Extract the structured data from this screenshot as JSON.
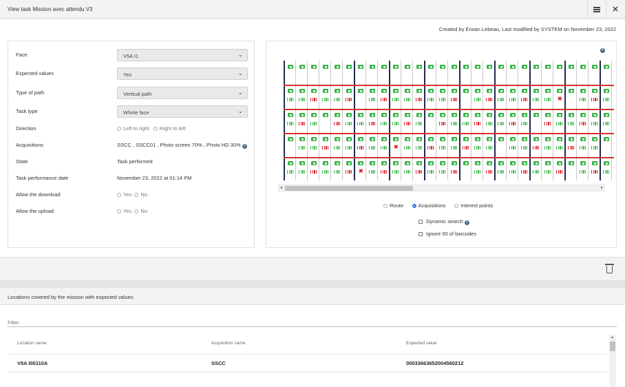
{
  "window": {
    "title": "View task Mission avec attendu V3"
  },
  "toolbar": {
    "list_icon": "list-icon",
    "close_icon": "close-icon"
  },
  "meta": {
    "text": "Created by Erwan Lebeau, Last modified by SYSTEM on November 23, 2022"
  },
  "form": {
    "face": {
      "label": "Face",
      "value": "V5A I1"
    },
    "expected_values": {
      "label": "Expected values",
      "value": "Yes"
    },
    "type_of_path": {
      "label": "Type of path",
      "value": "Vertical path"
    },
    "task_type": {
      "label": "Task type",
      "value": "Whole face"
    },
    "direction": {
      "label": "Direction",
      "opt1": "Left to right",
      "opt2": "Right to left"
    },
    "acquisitions": {
      "label": "Acquisitions",
      "value": "SSCC , SSCC01 , Photo screen 70% , Photo HD 30%"
    },
    "state": {
      "label": "State",
      "value": "Task performed"
    },
    "date": {
      "label": "Task performance date",
      "value": "November 23, 2022 at 01:14 PM"
    },
    "allow_download": {
      "label": "Allow the download",
      "yes": "Yes",
      "no": "No"
    },
    "allow_upload": {
      "label": "Allow the upload",
      "yes": "Yes",
      "no": "No"
    }
  },
  "map": {
    "view_route": "Route",
    "view_acquisitions": "Acquisitions",
    "view_interest": "Interest points",
    "selected_view": "Acquisitions",
    "dynamic_search": "Dynamic search",
    "ignore_barcodes": "Ignore 00 of barcodes",
    "colors": {
      "ok": "#3bb54a",
      "error": "#e0202a",
      "column_separator": "#1e2b4f",
      "row_separator": "#d33333"
    },
    "rows": 5,
    "columns_visible": 28
  },
  "locations": {
    "title": "Locations covered by the mission with expected values",
    "filter_placeholder": "Filter",
    "columns": [
      "Location name",
      "Acquisition name",
      "Expected value"
    ],
    "rows": [
      {
        "location": "V5A I00110A",
        "acquisition": "SSCC",
        "expected": "00033663652004560212"
      }
    ]
  }
}
